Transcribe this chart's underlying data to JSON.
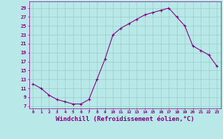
{
  "x": [
    0,
    1,
    2,
    3,
    4,
    5,
    6,
    7,
    8,
    9,
    10,
    11,
    12,
    13,
    14,
    15,
    16,
    17,
    18,
    19,
    20,
    21,
    22,
    23
  ],
  "y": [
    12,
    11,
    9.5,
    8.5,
    8,
    7.5,
    7.5,
    8.5,
    13,
    17.5,
    23,
    24.5,
    25.5,
    26.5,
    27.5,
    28,
    28.5,
    29,
    27,
    25,
    20.5,
    19.5,
    18.5,
    16
  ],
  "line_color": "#800080",
  "marker": "+",
  "background_color": "#b8e8e8",
  "grid_color": "#99cccc",
  "xlabel": "Windchill (Refroidissement éolien,°C)",
  "xlabel_fontsize": 6.5,
  "ytick_labels": [
    "7",
    "9",
    "11",
    "13",
    "15",
    "17",
    "19",
    "21",
    "23",
    "25",
    "27",
    "29"
  ],
  "ytick_values": [
    7,
    9,
    11,
    13,
    15,
    17,
    19,
    21,
    23,
    25,
    27,
    29
  ],
  "xlim": [
    -0.5,
    23.5
  ],
  "ylim": [
    6.5,
    30.5
  ]
}
